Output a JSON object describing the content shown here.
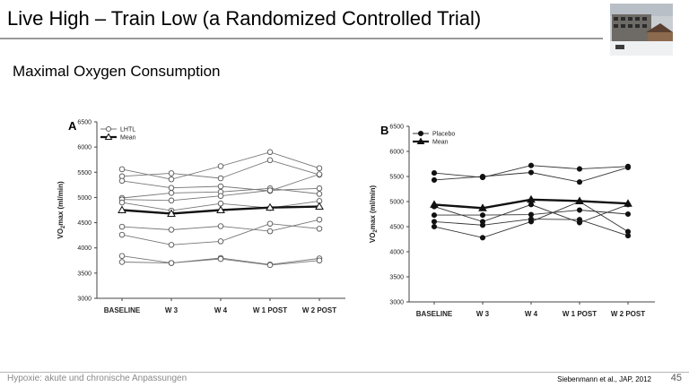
{
  "slide": {
    "title": "Live High – Train Low (a Randomized Controlled Trial)",
    "subtitle": "Maximal Oxygen Consumption",
    "footer_left": "Hypoxie: akute und chronische Anpassungen",
    "footer_citation": "Siebenmann et al., JAP, 2012",
    "page_number": "45"
  },
  "chart_data": [
    {
      "type": "line",
      "panel_label": "A",
      "ylabel": "VO2max (ml/min)",
      "ylim": [
        3000,
        6500
      ],
      "yticks": [
        3000,
        3500,
        4000,
        4500,
        5000,
        5500,
        6000,
        6500
      ],
      "categories": [
        "BASELINE",
        "W 3",
        "W 4",
        "W 1 POST",
        "W 2 POST"
      ],
      "legend": {
        "individual": "LHTL",
        "mean": "Mean"
      },
      "legend_position": "top-left",
      "marker_individual": "open-circle",
      "marker_mean": "open-triangle",
      "individuals": [
        [
          5560,
          5360,
          5620,
          5900,
          5580
        ],
        [
          5420,
          5480,
          5380,
          5740,
          5450
        ],
        [
          5330,
          5190,
          5220,
          5130,
          5460
        ],
        [
          4990,
          5090,
          5110,
          5180,
          5070
        ],
        [
          4960,
          4940,
          5030,
          5140,
          5180
        ],
        [
          4900,
          4740,
          4880,
          4790,
          4930
        ],
        [
          4420,
          4360,
          4430,
          4330,
          4560
        ],
        [
          4260,
          4060,
          4130,
          4480,
          4380
        ],
        [
          3840,
          3700,
          3800,
          3670,
          3790
        ],
        [
          3720,
          3700,
          3780,
          3660,
          3750
        ]
      ],
      "mean": [
        4750,
        4680,
        4750,
        4800,
        4820
      ]
    },
    {
      "type": "line",
      "panel_label": "B",
      "ylabel": "VO2max (ml/min)",
      "ylim": [
        3000,
        6500
      ],
      "yticks": [
        3000,
        3500,
        4000,
        4500,
        5000,
        5500,
        6000,
        6500
      ],
      "categories": [
        "BASELINE",
        "W 3",
        "W 4",
        "W 1 POST",
        "W 2 POST"
      ],
      "legend": {
        "individual": "Placebo",
        "mean": "Mean"
      },
      "legend_position": "top-left",
      "marker_individual": "filled-circle",
      "marker_mean": "filled-triangle",
      "individuals": [
        [
          5570,
          5480,
          5720,
          5650,
          5700
        ],
        [
          5430,
          5500,
          5580,
          5390,
          5680
        ],
        [
          4900,
          4600,
          4940,
          4580,
          4940
        ],
        [
          4730,
          4730,
          4740,
          4830,
          4750
        ],
        [
          4600,
          4530,
          4650,
          4640,
          4320
        ],
        [
          4500,
          4280,
          4600,
          5000,
          4400
        ]
      ],
      "mean": [
        4940,
        4870,
        5040,
        5010,
        4960
      ]
    }
  ]
}
